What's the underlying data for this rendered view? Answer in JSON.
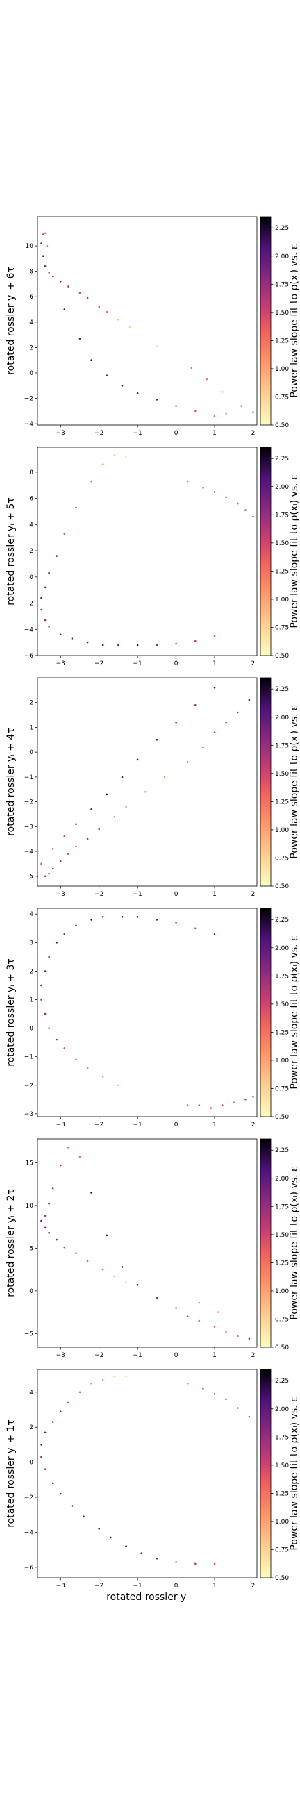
{
  "chart_data": {
    "type": "scatter",
    "xlabel": "rotated rossler yᵢ",
    "xlim": [
      -3.6,
      2.1
    ],
    "xticks": [
      -3,
      -2,
      -1,
      0,
      1,
      2
    ],
    "colorbar": {
      "label": "Power law slope fit to ρ(xᵢ) vs. ε",
      "cmap": "magma_r",
      "range": [
        0.5,
        2.35
      ],
      "ticks": [
        0.5,
        0.75,
        1.0,
        1.25,
        1.5,
        1.75,
        2.0,
        2.25
      ]
    },
    "panels": [
      {
        "ylabel": "rotated rossler yᵢ + 6τ",
        "ylim": [
          -4.1,
          12.3
        ],
        "yticks": [
          -4,
          -2,
          0,
          2,
          4,
          6,
          8,
          10
        ],
        "points": [
          [
            -3.45,
            10.9,
            1.6
          ],
          [
            -3.4,
            11.0,
            1.2
          ],
          [
            -3.5,
            10.2,
            1.8
          ],
          [
            -3.35,
            10.0,
            1.3
          ],
          [
            -3.45,
            9.2,
            2.0
          ],
          [
            -3.4,
            8.4,
            1.9
          ],
          [
            -3.3,
            7.9,
            1.5
          ],
          [
            -3.2,
            7.6,
            1.7
          ],
          [
            -3.0,
            7.2,
            1.9
          ],
          [
            -2.8,
            6.8,
            1.6
          ],
          [
            -2.5,
            6.3,
            1.5
          ],
          [
            -2.3,
            5.9,
            1.7
          ],
          [
            -2.0,
            5.2,
            1.4
          ],
          [
            -1.8,
            4.8,
            1.3
          ],
          [
            -1.5,
            4.2,
            0.9
          ],
          [
            -1.2,
            3.6,
            0.8
          ],
          [
            -0.5,
            2.1,
            0.7
          ],
          [
            -2.9,
            5.0,
            2.2
          ],
          [
            -2.5,
            2.7,
            2.1
          ],
          [
            -2.2,
            1.0,
            2.3
          ],
          [
            -1.8,
            -0.2,
            2.0
          ],
          [
            -1.4,
            -1.0,
            2.2
          ],
          [
            -1.0,
            -1.6,
            2.1
          ],
          [
            -0.5,
            -2.1,
            1.9
          ],
          [
            0.0,
            -2.6,
            1.6
          ],
          [
            0.5,
            -3.0,
            1.4
          ],
          [
            1.0,
            -3.4,
            1.3
          ],
          [
            1.3,
            -3.2,
            1.1
          ],
          [
            1.7,
            -2.6,
            1.3
          ],
          [
            2.0,
            -3.1,
            1.5
          ],
          [
            1.2,
            -1.5,
            1.0
          ],
          [
            0.8,
            -0.5,
            1.2
          ],
          [
            0.4,
            0.4,
            1.3
          ]
        ]
      },
      {
        "ylabel": "rotated rossler yᵢ + 5τ",
        "ylim": [
          -6.0,
          9.9
        ],
        "yticks": [
          -6,
          -4,
          -2,
          0,
          2,
          4,
          6,
          8
        ],
        "points": [
          [
            -1.6,
            9.3,
            0.8
          ],
          [
            -1.3,
            9.2,
            0.7
          ],
          [
            -1.9,
            8.6,
            1.1
          ],
          [
            -2.2,
            7.3,
            1.2
          ],
          [
            -2.6,
            5.3,
            1.5
          ],
          [
            -2.9,
            3.3,
            1.6
          ],
          [
            -3.1,
            1.6,
            1.9
          ],
          [
            -3.3,
            0.3,
            2.0
          ],
          [
            -3.4,
            -0.8,
            1.9
          ],
          [
            -3.5,
            -1.6,
            2.0
          ],
          [
            -3.5,
            -2.5,
            1.8
          ],
          [
            -3.4,
            -3.3,
            1.7
          ],
          [
            -3.3,
            -3.8,
            1.6
          ],
          [
            -3.0,
            -4.4,
            1.8
          ],
          [
            -2.7,
            -4.7,
            1.9
          ],
          [
            -2.3,
            -5.0,
            2.0
          ],
          [
            -1.9,
            -5.2,
            2.1
          ],
          [
            -1.5,
            -5.2,
            2.0
          ],
          [
            -1.0,
            -5.2,
            2.2
          ],
          [
            -0.5,
            -5.2,
            1.8
          ],
          [
            0.0,
            -5.1,
            1.7
          ],
          [
            0.5,
            -4.9,
            1.6
          ],
          [
            1.0,
            -4.5,
            1.4
          ],
          [
            0.3,
            7.3,
            1.2
          ],
          [
            0.7,
            6.8,
            1.3
          ],
          [
            1.0,
            6.5,
            1.5
          ],
          [
            1.3,
            6.1,
            1.6
          ],
          [
            1.6,
            5.6,
            1.4
          ],
          [
            1.8,
            5.1,
            1.5
          ],
          [
            2.0,
            4.6,
            1.6
          ]
        ]
      },
      {
        "ylabel": "rotated rossler yᵢ + 4τ",
        "ylim": [
          -5.4,
          3.0
        ],
        "yticks": [
          -5,
          -4,
          -3,
          -2,
          -1,
          0,
          1,
          2
        ],
        "points": [
          [
            -3.4,
            -5.0,
            1.5
          ],
          [
            -3.3,
            -4.9,
            1.6
          ],
          [
            -3.2,
            -4.7,
            1.7
          ],
          [
            -3.0,
            -4.4,
            1.8
          ],
          [
            -2.8,
            -4.1,
            1.6
          ],
          [
            -2.6,
            -3.8,
            1.5
          ],
          [
            -2.3,
            -3.5,
            1.7
          ],
          [
            -2.0,
            -3.1,
            1.6
          ],
          [
            -1.6,
            -2.6,
            1.2
          ],
          [
            -1.3,
            -2.2,
            1.1
          ],
          [
            -0.8,
            -1.6,
            1.0
          ],
          [
            -0.3,
            -1.0,
            1.1
          ],
          [
            0.3,
            -0.4,
            1.3
          ],
          [
            0.7,
            0.2,
            1.4
          ],
          [
            1.0,
            0.8,
            1.5
          ],
          [
            1.3,
            1.2,
            1.6
          ],
          [
            1.6,
            1.6,
            1.7
          ],
          [
            1.9,
            2.1,
            2.0
          ],
          [
            1.0,
            2.6,
            2.1
          ],
          [
            0.5,
            1.9,
            1.8
          ],
          [
            0.0,
            1.2,
            1.9
          ],
          [
            -0.5,
            0.5,
            2.1
          ],
          [
            -1.0,
            -0.3,
            2.2
          ],
          [
            -1.4,
            -1.0,
            2.1
          ],
          [
            -1.8,
            -1.7,
            2.2
          ],
          [
            -2.2,
            -2.3,
            2.0
          ],
          [
            -2.6,
            -2.9,
            1.9
          ],
          [
            -2.9,
            -3.4,
            1.8
          ],
          [
            -3.2,
            -3.9,
            1.6
          ],
          [
            -3.5,
            -4.5,
            1.4
          ],
          [
            -3.6,
            -5.0,
            1.3
          ]
        ]
      },
      {
        "ylabel": "rotated rossler yᵢ + 3τ",
        "ylim": [
          -3.1,
          4.2
        ],
        "yticks": [
          -3,
          -2,
          -1,
          0,
          1,
          2,
          3,
          4
        ],
        "points": [
          [
            -2.6,
            3.6,
            2.0
          ],
          [
            -2.2,
            3.8,
            2.1
          ],
          [
            -1.9,
            3.9,
            2.0
          ],
          [
            -1.4,
            3.9,
            2.2
          ],
          [
            -1.0,
            3.9,
            2.1
          ],
          [
            -0.5,
            3.8,
            1.9
          ],
          [
            0.0,
            3.7,
            1.6
          ],
          [
            0.5,
            3.5,
            1.5
          ],
          [
            1.0,
            3.3,
            1.8
          ],
          [
            -2.9,
            3.3,
            1.9
          ],
          [
            -3.1,
            3.0,
            2.0
          ],
          [
            -3.3,
            2.5,
            1.8
          ],
          [
            -3.4,
            2.0,
            1.9
          ],
          [
            -3.5,
            1.5,
            2.0
          ],
          [
            -3.5,
            1.0,
            1.7
          ],
          [
            -3.4,
            0.5,
            1.8
          ],
          [
            -3.3,
            0.0,
            1.6
          ],
          [
            -3.1,
            -0.4,
            1.7
          ],
          [
            -2.9,
            -0.7,
            1.5
          ],
          [
            -2.6,
            -1.1,
            1.4
          ],
          [
            -2.3,
            -1.4,
            1.2
          ],
          [
            -1.9,
            -1.7,
            1.0
          ],
          [
            -1.5,
            -2.0,
            0.9
          ],
          [
            0.3,
            -2.7,
            1.3
          ],
          [
            0.6,
            -2.7,
            1.5
          ],
          [
            0.9,
            -2.8,
            1.4
          ],
          [
            1.2,
            -2.7,
            1.6
          ],
          [
            1.5,
            -2.6,
            1.3
          ],
          [
            1.8,
            -2.5,
            1.5
          ],
          [
            2.0,
            -2.4,
            1.7
          ]
        ]
      },
      {
        "ylabel": "rotated rossler yᵢ + 2τ",
        "ylim": [
          -6.6,
          17.8
        ],
        "yticks": [
          -5,
          0,
          5,
          10,
          15
        ],
        "points": [
          [
            -2.8,
            16.8,
            1.4
          ],
          [
            -2.5,
            15.7,
            1.3
          ],
          [
            -3.0,
            14.7,
            1.6
          ],
          [
            -3.2,
            12.0,
            1.7
          ],
          [
            -2.2,
            11.5,
            2.2
          ],
          [
            -3.3,
            10.2,
            1.8
          ],
          [
            -3.4,
            8.8,
            1.7
          ],
          [
            -3.5,
            8.2,
            2.0
          ],
          [
            -3.4,
            7.4,
            1.9
          ],
          [
            -3.3,
            6.8,
            2.1
          ],
          [
            -3.1,
            6.0,
            1.8
          ],
          [
            -2.9,
            5.1,
            1.6
          ],
          [
            -2.6,
            4.4,
            1.5
          ],
          [
            -2.3,
            3.5,
            1.4
          ],
          [
            -1.9,
            2.5,
            1.3
          ],
          [
            -1.6,
            1.7,
            1.0
          ],
          [
            -1.3,
            1.0,
            0.8
          ],
          [
            -1.8,
            6.5,
            2.1
          ],
          [
            -1.4,
            2.8,
            2.2
          ],
          [
            -1.0,
            0.7,
            2.1
          ],
          [
            -0.5,
            -0.8,
            1.9
          ],
          [
            0.0,
            -2.0,
            1.6
          ],
          [
            0.3,
            -3.0,
            1.5
          ],
          [
            0.6,
            -3.5,
            1.3
          ],
          [
            1.0,
            -4.2,
            1.4
          ],
          [
            1.3,
            -4.8,
            1.2
          ],
          [
            1.6,
            -5.3,
            1.4
          ],
          [
            1.9,
            -5.6,
            1.6
          ],
          [
            1.1,
            -2.5,
            1.1
          ],
          [
            0.6,
            -1.4,
            1.2
          ]
        ]
      },
      {
        "ylabel": "rotated rossler yᵢ + 1τ",
        "ylim": [
          -6.6,
          5.3
        ],
        "yticks": [
          -6,
          -4,
          -2,
          0,
          2,
          4
        ],
        "points": [
          [
            -1.6,
            4.9,
            0.8
          ],
          [
            -1.3,
            4.9,
            0.7
          ],
          [
            -1.9,
            4.7,
            1.0
          ],
          [
            -2.2,
            4.5,
            1.2
          ],
          [
            -2.5,
            4.0,
            1.4
          ],
          [
            -2.8,
            3.4,
            1.6
          ],
          [
            -3.0,
            2.9,
            1.8
          ],
          [
            -3.2,
            2.3,
            1.9
          ],
          [
            -3.4,
            1.7,
            2.0
          ],
          [
            -3.5,
            1.0,
            1.9
          ],
          [
            -3.5,
            0.3,
            1.8
          ],
          [
            -3.4,
            -0.4,
            1.7
          ],
          [
            -3.2,
            -1.2,
            1.8
          ],
          [
            -3.0,
            -1.8,
            1.9
          ],
          [
            -2.7,
            -2.5,
            2.0
          ],
          [
            -2.4,
            -3.1,
            2.1
          ],
          [
            -2.0,
            -3.8,
            2.0
          ],
          [
            -1.7,
            -4.3,
            2.1
          ],
          [
            -1.3,
            -4.8,
            2.2
          ],
          [
            -0.9,
            -5.2,
            2.0
          ],
          [
            -0.5,
            -5.5,
            1.8
          ],
          [
            0.0,
            -5.7,
            1.7
          ],
          [
            0.5,
            -5.8,
            1.6
          ],
          [
            1.0,
            -5.8,
            1.4
          ],
          [
            0.3,
            4.5,
            1.2
          ],
          [
            0.7,
            4.2,
            1.3
          ],
          [
            1.0,
            3.9,
            1.5
          ],
          [
            1.3,
            3.6,
            1.6
          ],
          [
            1.6,
            3.1,
            1.4
          ],
          [
            1.9,
            2.6,
            1.5
          ]
        ]
      }
    ]
  }
}
